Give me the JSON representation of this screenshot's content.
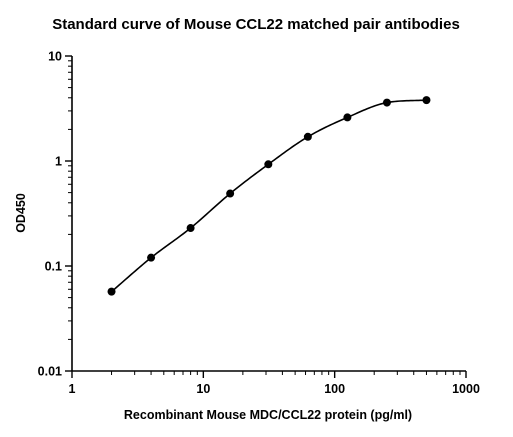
{
  "chart_data": {
    "type": "scatter",
    "title": "Standard curve of Mouse CCL22 matched pair antibodies",
    "xlabel": "Recombinant Mouse MDC/CCL22 protein (pg/ml)",
    "ylabel": "OD450",
    "x_scale": "log",
    "y_scale": "log",
    "xlim": [
      1,
      1000
    ],
    "ylim": [
      0.01,
      10
    ],
    "x_ticks": [
      "1",
      "10",
      "100",
      "1000"
    ],
    "y_ticks": [
      "0.01",
      "0.1",
      "1",
      "10"
    ],
    "grid": false,
    "legend": "none",
    "has_fit_curve": true,
    "colors": {
      "points": "#000000",
      "curve": "#000000",
      "axes": "#000000"
    },
    "series": [
      {
        "x": [
          2,
          4,
          8,
          16,
          31.25,
          62.5,
          125,
          250,
          500
        ],
        "y": [
          0.057,
          0.12,
          0.23,
          0.49,
          0.93,
          1.7,
          2.6,
          3.6,
          3.8
        ]
      }
    ]
  }
}
